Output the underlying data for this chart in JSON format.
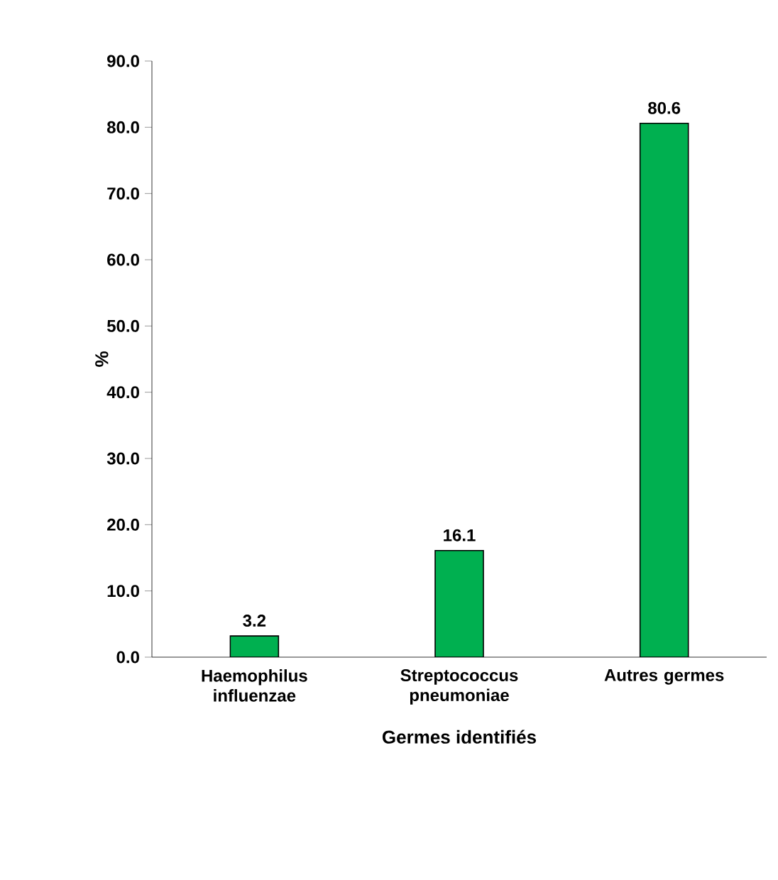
{
  "chart_data": {
    "type": "bar",
    "xlabel": "Germes identifiés",
    "ylabel": "%",
    "categories": [
      "Haemophilus influenzae",
      "Streptococcus pneumoniae",
      "Autres germes"
    ],
    "values": [
      3.2,
      16.1,
      80.6
    ],
    "color": "#00b050",
    "data_labels": true,
    "ylim": [
      0,
      90
    ],
    "yticks": [
      {
        "value": 0,
        "label": "0.0"
      },
      {
        "value": 10,
        "label": "10.0"
      },
      {
        "value": 20,
        "label": "20.0"
      },
      {
        "value": 30,
        "label": "30.0"
      },
      {
        "value": 40,
        "label": "40.0"
      },
      {
        "value": 50,
        "label": "50.0"
      },
      {
        "value": 60,
        "label": "60.0"
      },
      {
        "value": 70,
        "label": "70.0"
      },
      {
        "value": 80,
        "label": "80.0"
      },
      {
        "value": 90,
        "label": "90.0"
      }
    ],
    "grid": false
  }
}
